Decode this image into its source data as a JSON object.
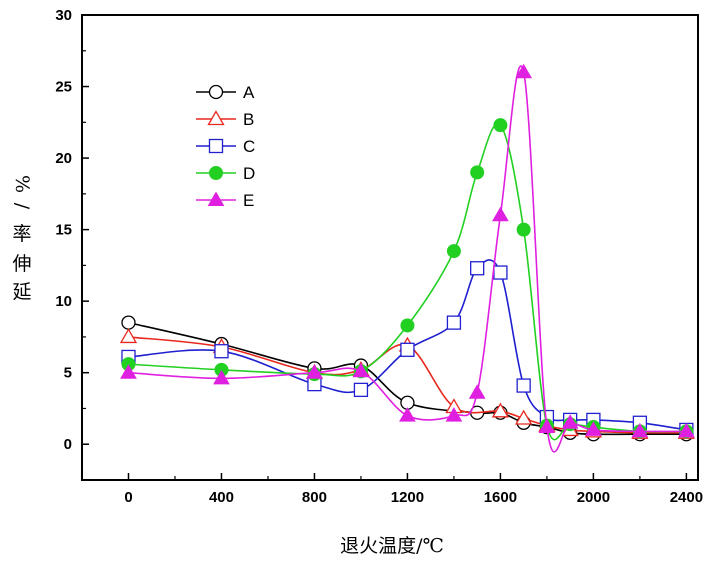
{
  "chart_data": {
    "type": "line",
    "xlabel": "退火温度/℃",
    "ylabel_chars": [
      "%",
      "/",
      "率",
      "伸",
      "延"
    ],
    "xlim": [
      -200,
      2450
    ],
    "ylim": [
      -2.5,
      30
    ],
    "xticks": [
      0,
      400,
      800,
      1200,
      1600,
      2000,
      2400
    ],
    "yticks": [
      0,
      5,
      10,
      15,
      20,
      25,
      30
    ],
    "legend_position": "upper-left",
    "grid": false,
    "series": [
      {
        "name": "A",
        "color": "#000000",
        "marker": "circle-open",
        "x": [
          0,
          400,
          800,
          1000,
          1200,
          1500,
          1600,
          1700,
          1800,
          1900,
          2000,
          2200,
          2400
        ],
        "y": [
          8.5,
          7.0,
          5.3,
          5.5,
          2.9,
          2.2,
          2.2,
          1.5,
          1.2,
          0.8,
          0.7,
          0.7,
          0.7
        ]
      },
      {
        "name": "B",
        "color": "#e8281e",
        "marker": "triangle-open",
        "x": [
          0,
          400,
          800,
          1000,
          1200,
          1400,
          1600,
          1700,
          1800,
          1900,
          2000,
          2200,
          2400
        ],
        "y": [
          7.5,
          6.8,
          5.0,
          5.2,
          6.9,
          2.6,
          2.3,
          1.8,
          1.3,
          1.0,
          0.9,
          0.8,
          0.8
        ]
      },
      {
        "name": "C",
        "color": "#2020d0",
        "marker": "square-open",
        "x": [
          0,
          400,
          800,
          1000,
          1200,
          1400,
          1500,
          1600,
          1700,
          1800,
          1900,
          2000,
          2200,
          2400
        ],
        "y": [
          6.1,
          6.5,
          4.2,
          3.8,
          6.6,
          8.5,
          12.3,
          12.0,
          4.1,
          1.9,
          1.7,
          1.7,
          1.5,
          1.0
        ]
      },
      {
        "name": "D",
        "color": "#22d022",
        "marker": "circle-filled",
        "x": [
          0,
          400,
          800,
          1000,
          1200,
          1400,
          1500,
          1600,
          1700,
          1800,
          1900,
          2000,
          2200,
          2400
        ],
        "y": [
          5.6,
          5.2,
          4.9,
          5.1,
          8.3,
          13.5,
          19.0,
          22.3,
          15.0,
          1.3,
          1.4,
          1.2,
          0.9,
          0.9
        ]
      },
      {
        "name": "E",
        "color": "#e020e0",
        "marker": "triangle-filled",
        "x": [
          0,
          400,
          800,
          1000,
          1200,
          1400,
          1500,
          1600,
          1700,
          1800,
          1900,
          2000,
          2200,
          2400
        ],
        "y": [
          5.0,
          4.6,
          5.0,
          5.1,
          2.0,
          2.0,
          3.6,
          16.0,
          26.0,
          1.2,
          1.5,
          1.0,
          0.9,
          0.9
        ]
      }
    ]
  }
}
